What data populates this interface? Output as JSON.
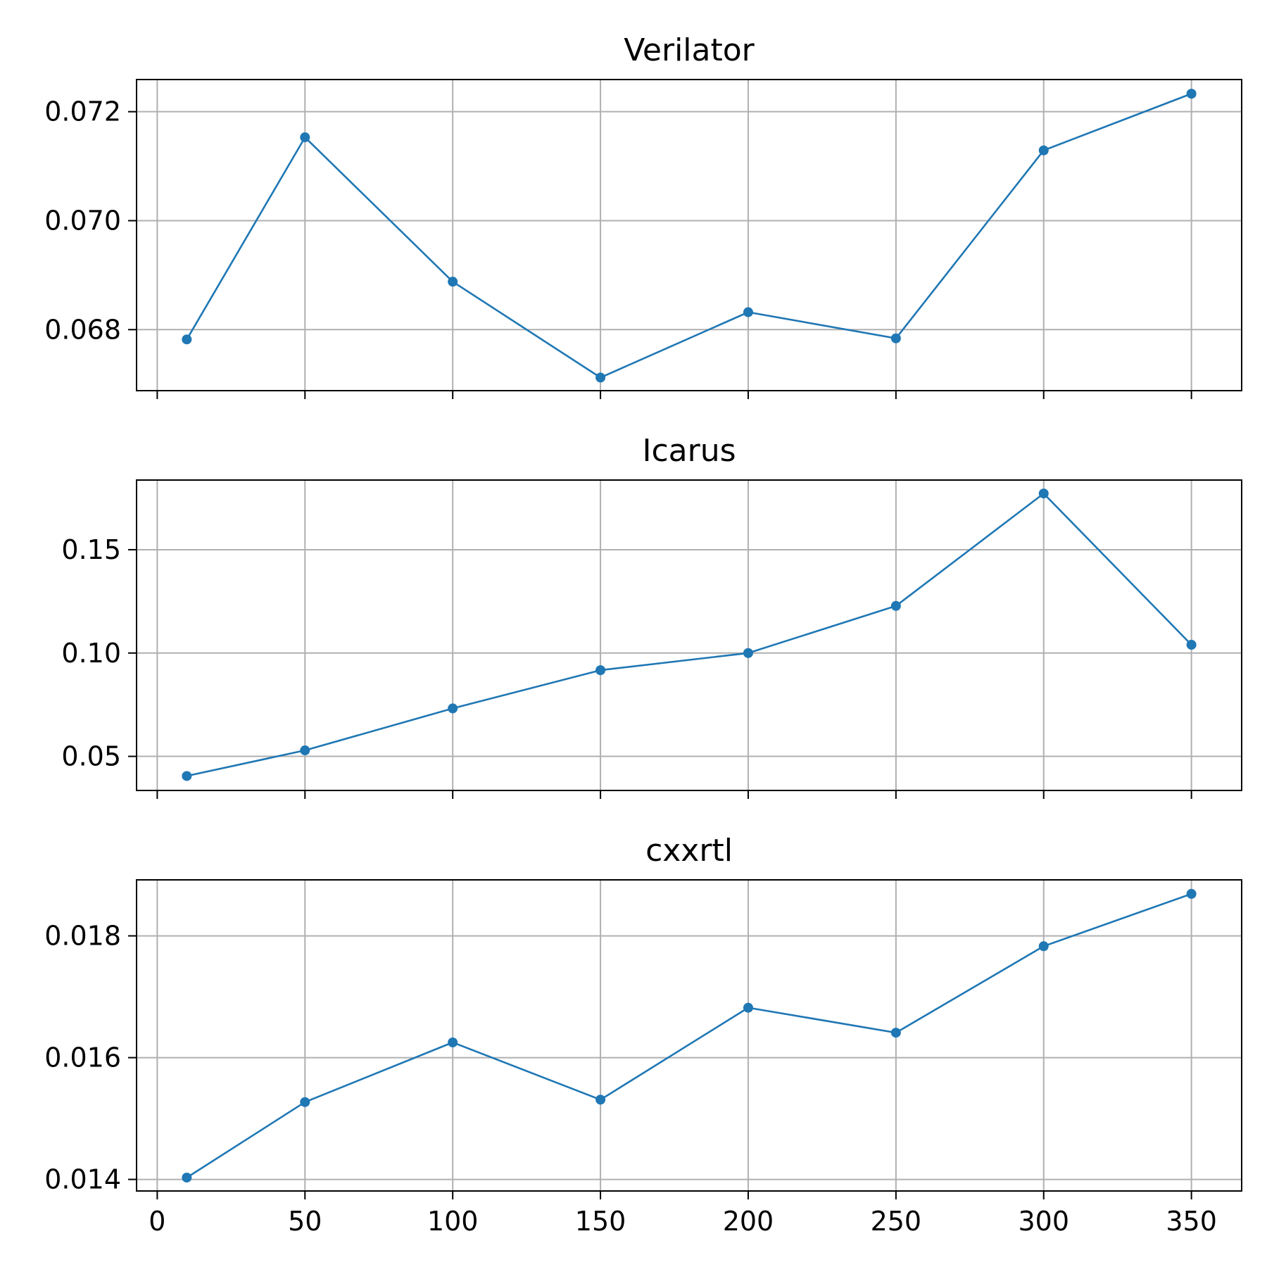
{
  "chart_data": [
    {
      "type": "line",
      "title": "Verilator",
      "xlabel": "",
      "ylabel": "",
      "x": [
        10,
        50,
        100,
        150,
        200,
        250,
        300,
        350
      ],
      "values": [
        0.06782,
        0.07153,
        0.06888,
        0.06712,
        0.06832,
        0.06784,
        0.07129,
        0.07233
      ],
      "xlim": [
        -7,
        367
      ],
      "ylim": [
        0.06688,
        0.07259
      ],
      "xticks": [
        0,
        50,
        100,
        150,
        200,
        250,
        300,
        350
      ],
      "xtick_labels": [],
      "yticks": [
        0.068,
        0.07,
        0.072
      ],
      "ytick_labels": [
        "0.068",
        "0.070",
        "0.072"
      ],
      "grid": true,
      "color": "#1f77b4"
    },
    {
      "type": "line",
      "title": "Icarus",
      "xlabel": "",
      "ylabel": "",
      "x": [
        10,
        50,
        100,
        150,
        200,
        250,
        300,
        350
      ],
      "values": [
        0.0405,
        0.0529,
        0.0732,
        0.0917,
        0.1,
        0.1228,
        0.1772,
        0.104
      ],
      "xlim": [
        -7,
        367
      ],
      "ylim": [
        0.0335,
        0.1837
      ],
      "xticks": [
        0,
        50,
        100,
        150,
        200,
        250,
        300,
        350
      ],
      "xtick_labels": [],
      "yticks": [
        0.05,
        0.1,
        0.15
      ],
      "ytick_labels": [
        "0.05",
        "0.10",
        "0.15"
      ],
      "grid": true,
      "color": "#1f77b4"
    },
    {
      "type": "line",
      "title": "cxxrtl",
      "xlabel": "",
      "ylabel": "",
      "x": [
        10,
        50,
        100,
        150,
        200,
        250,
        300,
        350
      ],
      "values": [
        0.01403,
        0.01527,
        0.01625,
        0.01531,
        0.01682,
        0.01641,
        0.01783,
        0.01869
      ],
      "xlim": [
        -7,
        367
      ],
      "ylim": [
        0.01381,
        0.01892
      ],
      "xticks": [
        0,
        50,
        100,
        150,
        200,
        250,
        300,
        350
      ],
      "xtick_labels": [
        "0",
        "50",
        "100",
        "150",
        "200",
        "250",
        "300",
        "350"
      ],
      "yticks": [
        0.014,
        0.016,
        0.018
      ],
      "ytick_labels": [
        "0.014",
        "0.016",
        "0.018"
      ],
      "grid": true,
      "color": "#1f77b4"
    }
  ]
}
